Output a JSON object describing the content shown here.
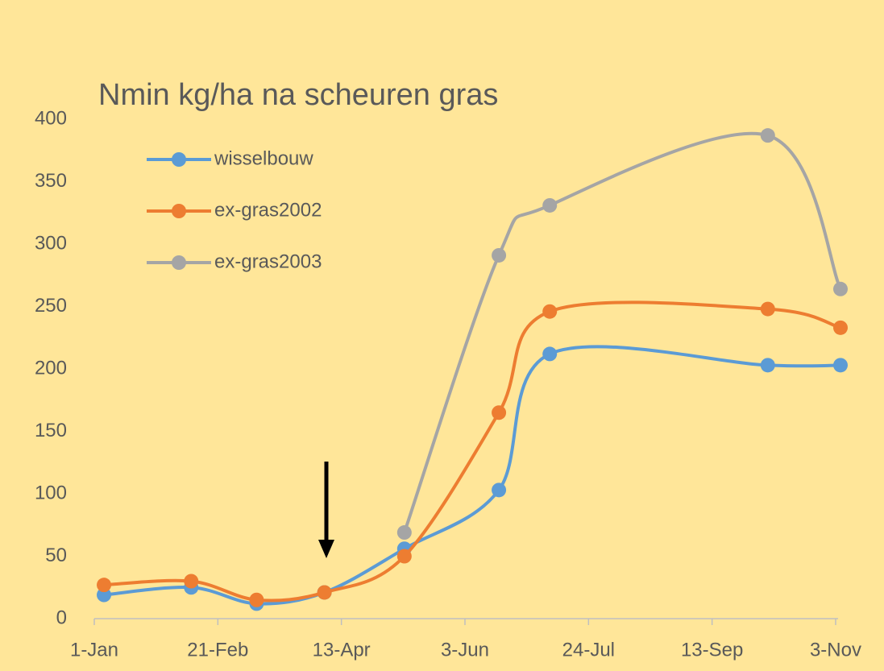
{
  "chart_data": {
    "type": "line",
    "title": "Nmin kg/ha na scheuren gras",
    "x": [
      5,
      41,
      68,
      96,
      129,
      168,
      189,
      279,
      309
    ],
    "series": [
      {
        "name": "wisselbouw",
        "color": "#5b9bd5",
        "values": [
          19,
          25,
          12,
          21,
          56,
          103,
          212,
          203,
          203
        ]
      },
      {
        "name": "ex-gras2002",
        "color": "#ed7d31",
        "values": [
          27,
          30,
          15,
          21,
          50,
          165,
          246,
          248,
          233
        ]
      },
      {
        "name": "ex-gras2003",
        "color": "#a5a5a5",
        "values": [
          null,
          null,
          null,
          null,
          69,
          291,
          331,
          387,
          264
        ]
      }
    ],
    "xlim": [
      1,
      310
    ],
    "xticks": [
      {
        "value": 1,
        "label": "1-Jan"
      },
      {
        "value": 52,
        "label": "21-Feb"
      },
      {
        "value": 103,
        "label": "13-Apr"
      },
      {
        "value": 154,
        "label": "3-Jun"
      },
      {
        "value": 205,
        "label": "24-Jul"
      },
      {
        "value": 256,
        "label": "13-Sep"
      },
      {
        "value": 307,
        "label": "3-Nov"
      }
    ],
    "ylim": [
      0,
      400
    ],
    "yticks": [
      0,
      50,
      100,
      150,
      200,
      250,
      300,
      350,
      400
    ],
    "legend": "upper left",
    "smooth": true
  }
}
